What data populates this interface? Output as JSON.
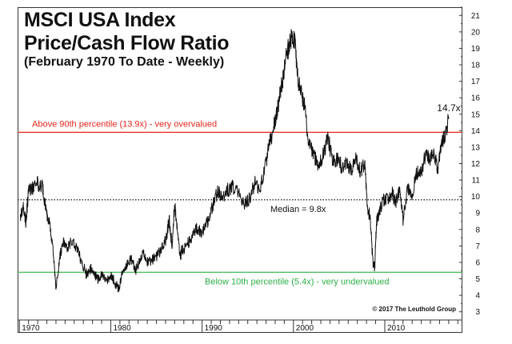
{
  "chart_data": {
    "type": "line",
    "title": "MSCI USA Index",
    "title_line2": "Price/Cash Flow Ratio",
    "subtitle": "(February 1970 To Date - Weekly)",
    "xlabel": "",
    "ylabel": "",
    "x_ticks": [
      "1970",
      "1980",
      "1990",
      "2000",
      "2010"
    ],
    "y_ticks": [
      3,
      4,
      5,
      6,
      7,
      8,
      9,
      10,
      11,
      12,
      13,
      14,
      15,
      16,
      17,
      18,
      19,
      20,
      21
    ],
    "xlim": [
      1969.8,
      2018.5
    ],
    "ylim": [
      2.5,
      21.5
    ],
    "grid": false,
    "legend": "none",
    "series": [
      {
        "x": [
          1970.1,
          1970.4,
          1970.7,
          1971.0,
          1971.5,
          1972.0,
          1972.5,
          1972.9,
          1973.3,
          1973.7,
          1974.0,
          1974.4,
          1974.8,
          1975.2,
          1975.7,
          1976.2,
          1976.8,
          1977.3,
          1977.8,
          1978.2,
          1978.6,
          1979.0,
          1979.5,
          1980.0,
          1980.4,
          1980.9,
          1981.3,
          1981.8,
          1982.3,
          1982.7,
          1983.1,
          1983.5,
          1984.0,
          1984.5,
          1985.0,
          1985.5,
          1986.0,
          1986.4,
          1986.7,
          1987.0,
          1987.3,
          1987.6,
          1987.8,
          1988.2,
          1988.6,
          1989.0,
          1989.5,
          1990.0,
          1990.5,
          1990.8,
          1991.2,
          1991.7,
          1992.2,
          1992.8,
          1993.4,
          1994.0,
          1994.6,
          1995.2,
          1995.8,
          1996.3,
          1996.8,
          1997.3,
          1997.8,
          1998.2,
          1998.6,
          1998.9,
          1999.2,
          1999.5,
          1999.8,
          2000.1,
          2000.4,
          2000.8,
          2001.2,
          2001.7,
          2002.2,
          2002.8,
          2003.2,
          2003.8,
          2004.3,
          2004.8,
          2005.3,
          2005.8,
          2006.3,
          2006.8,
          2007.3,
          2007.8,
          2008.1,
          2008.4,
          2008.7,
          2008.9,
          2009.1,
          2009.4,
          2009.8,
          2010.3,
          2010.8,
          2011.2,
          2011.6,
          2012.0,
          2012.5,
          2013.0,
          2013.5,
          2014.0,
          2014.5,
          2015.0,
          2015.4,
          2015.8,
          2016.2,
          2016.6,
          2017.0
        ],
        "values": [
          8.6,
          9.5,
          8.5,
          10.3,
          10.5,
          10.8,
          10.6,
          9.2,
          8.3,
          6.6,
          4.3,
          6.3,
          7.2,
          6.8,
          7.4,
          6.9,
          6.1,
          5.3,
          5.6,
          5.2,
          5.0,
          5.2,
          4.8,
          5.3,
          4.8,
          4.4,
          5.6,
          5.9,
          6.2,
          5.5,
          6.0,
          6.6,
          6.0,
          6.2,
          6.3,
          6.8,
          7.3,
          8.6,
          7.0,
          9.6,
          8.0,
          6.3,
          6.8,
          6.9,
          7.3,
          7.7,
          8.1,
          7.8,
          8.3,
          8.9,
          9.5,
          10.3,
          10.0,
          10.4,
          10.6,
          10.1,
          9.6,
          9.9,
          10.8,
          10.4,
          11.5,
          13.0,
          14.1,
          15.0,
          16.5,
          17.2,
          18.6,
          19.1,
          19.8,
          19.6,
          17.6,
          16.4,
          15.5,
          13.2,
          12.6,
          11.8,
          12.5,
          13.6,
          12.0,
          12.3,
          11.8,
          12.1,
          11.6,
          12.4,
          11.6,
          11.9,
          9.5,
          8.6,
          6.0,
          5.7,
          8.5,
          9.0,
          9.8,
          9.8,
          10.2,
          9.6,
          10.3,
          8.6,
          10.4,
          10.2,
          11.4,
          11.5,
          12.6,
          12.3,
          12.8,
          11.6,
          13.2,
          13.8,
          14.7
        ]
      }
    ],
    "reference_lines": [
      {
        "label": "Above 90th percentile (13.9x) - very overvalued",
        "value": 13.9,
        "color": "#e8261c",
        "style": "solid"
      },
      {
        "label": "Median = 9.8x",
        "value": 9.8,
        "color": "#111111",
        "style": "dotted"
      },
      {
        "label": "Below 10th percentile (5.4x) - very undervalued",
        "value": 5.4,
        "color": "#2db045",
        "style": "solid"
      }
    ],
    "annotations": [
      {
        "text": "14.7x",
        "x": 2016.6,
        "y": 14.7
      },
      {
        "text": "© 2017 The Leuthold Group"
      }
    ],
    "colors": {
      "series": "#111111",
      "overvalued": "#e8261c",
      "undervalued": "#2db045",
      "median": "#111111"
    }
  }
}
